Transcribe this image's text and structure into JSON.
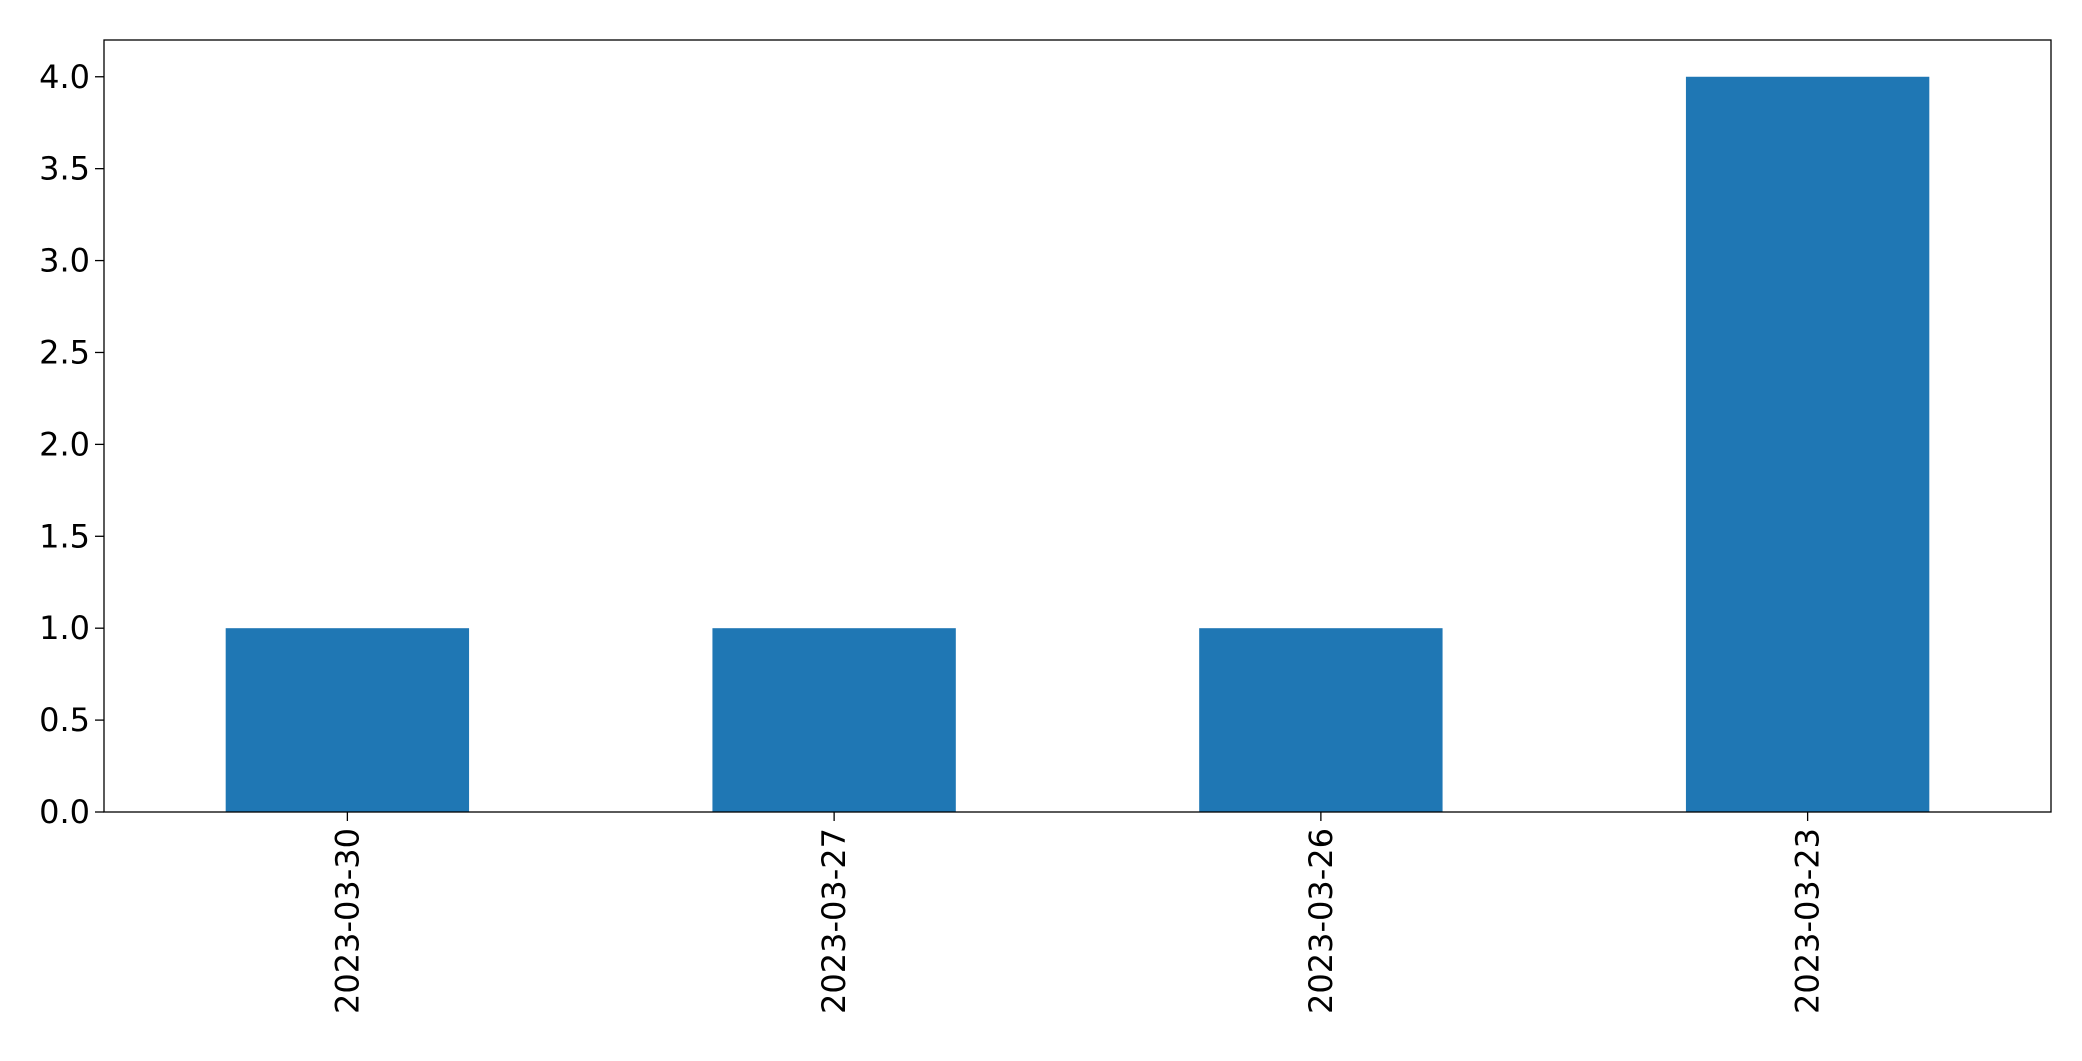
{
  "chart_data": {
    "type": "bar",
    "categories": [
      "2023-03-30",
      "2023-03-27",
      "2023-03-26",
      "2023-03-23"
    ],
    "values": [
      1,
      1,
      1,
      4
    ],
    "color": "#1f77b4",
    "ylim": [
      0,
      4.2
    ],
    "yticks": [
      {
        "value": 0,
        "label": "0.0"
      },
      0.5,
      {
        "value": 1,
        "label": "1.0"
      },
      1.5,
      {
        "value": 2,
        "label": "2.0"
      },
      2.5,
      {
        "value": 3,
        "label": "3.0"
      },
      3.5,
      {
        "value": 4,
        "label": "4.0"
      }
    ],
    "grid": false
  }
}
